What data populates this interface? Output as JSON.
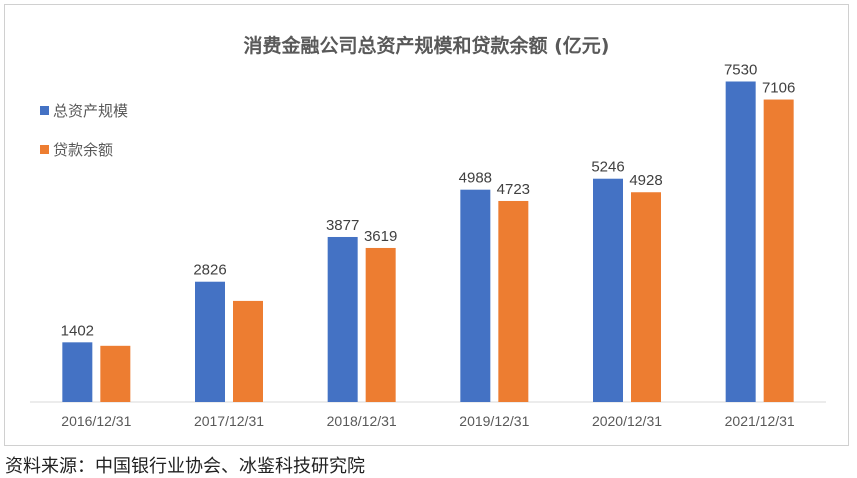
{
  "chart_data": {
    "type": "bar",
    "title": "消费金融公司总资产规模和贷款余额 (亿元)",
    "categories": [
      "2016/12/31",
      "2017/12/31",
      "2018/12/31",
      "2019/12/31",
      "2020/12/31",
      "2021/12/31"
    ],
    "series": [
      {
        "name": "总资产规模",
        "color": "#4472c4",
        "values": [
          1402,
          2826,
          3877,
          4988,
          5246,
          7530
        ],
        "labels": [
          "1402",
          "2826",
          "3877",
          "4988",
          "5246",
          "7530"
        ]
      },
      {
        "name": "贷款余额",
        "color": "#ed7d31",
        "values": [
          1320,
          2375,
          3619,
          4723,
          4928,
          7106
        ],
        "labels": [
          "",
          "",
          "3619",
          "4723",
          "4928",
          "7106"
        ]
      }
    ],
    "ylim": [
      0,
      7800
    ],
    "grid": false,
    "legend_position": "top-left"
  },
  "source": "资料来源：中国银行业协会、冰鉴科技研究院"
}
